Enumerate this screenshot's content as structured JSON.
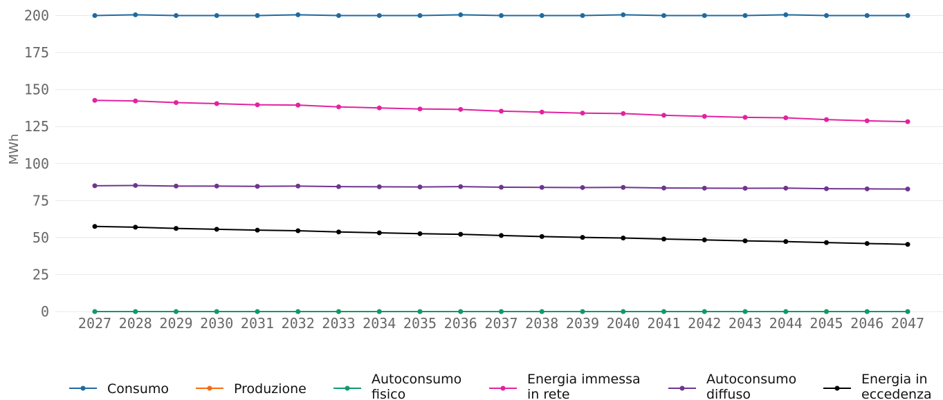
{
  "chart_data": {
    "type": "line",
    "title": "",
    "xlabel": "",
    "ylabel": "MWh",
    "ylim": [
      0,
      200
    ],
    "yticks": [
      0,
      25,
      50,
      75,
      100,
      125,
      150,
      175,
      200
    ],
    "grid": "horizontal",
    "legend_position": "bottom",
    "categories": [
      "2027",
      "2028",
      "2029",
      "2030",
      "2031",
      "2032",
      "2033",
      "2034",
      "2035",
      "2036",
      "2037",
      "2038",
      "2039",
      "2040",
      "2041",
      "2042",
      "2043",
      "2044",
      "2045",
      "2046",
      "2047"
    ],
    "series": [
      {
        "name": "Consumo",
        "color": "#1f6aa0",
        "values": [
          200,
          200.5,
          200,
          200,
          200,
          200.5,
          200,
          200,
          200,
          200.5,
          200,
          200,
          200,
          200.5,
          200,
          200,
          200,
          200.5,
          200,
          200,
          200
        ]
      },
      {
        "name": "Produzione",
        "color": "#f36c12",
        "values": [
          0,
          0,
          0,
          0,
          0,
          0,
          0,
          0,
          0,
          0,
          0,
          0,
          0,
          0,
          0,
          0,
          0,
          0,
          0,
          0,
          0
        ]
      },
      {
        "name": "Autoconsumo fisico",
        "color": "#0f9a6a",
        "values": [
          0,
          0,
          0,
          0,
          0,
          0,
          0,
          0,
          0,
          0,
          0,
          0,
          0,
          0,
          0,
          0,
          0,
          0,
          0,
          0,
          0
        ]
      },
      {
        "name": "Energia immessa in rete",
        "color": "#e3219f",
        "values": [
          142.7,
          142.3,
          141.2,
          140.5,
          139.7,
          139.5,
          138.3,
          137.6,
          136.9,
          136.6,
          135.4,
          134.8,
          134.1,
          133.8,
          132.6,
          131.9,
          131.2,
          130.9,
          129.7,
          128.9,
          128.3
        ]
      },
      {
        "name": "Autoconsumo diffuso",
        "color": "#6e3590",
        "values": [
          85.0,
          85.2,
          84.8,
          84.8,
          84.6,
          84.8,
          84.4,
          84.3,
          84.2,
          84.4,
          84.0,
          83.9,
          83.8,
          83.9,
          83.5,
          83.4,
          83.3,
          83.4,
          83.0,
          82.9,
          82.8
        ]
      },
      {
        "name": "Energia in eccedenza",
        "color": "#000000",
        "values": [
          57.5,
          57.0,
          56.2,
          55.6,
          55.0,
          54.6,
          53.8,
          53.2,
          52.6,
          52.2,
          51.4,
          50.7,
          50.1,
          49.7,
          49.0,
          48.4,
          47.8,
          47.3,
          46.6,
          46.0,
          45.4
        ]
      }
    ]
  },
  "legend": {
    "items": [
      {
        "lines": [
          "Consumo"
        ]
      },
      {
        "lines": [
          "Produzione"
        ]
      },
      {
        "lines": [
          "Autoconsumo",
          "fisico"
        ]
      },
      {
        "lines": [
          "Energia immessa",
          "in rete"
        ]
      },
      {
        "lines": [
          "Autoconsumo",
          "diffuso"
        ]
      },
      {
        "lines": [
          "Energia in",
          "eccedenza"
        ]
      }
    ]
  }
}
